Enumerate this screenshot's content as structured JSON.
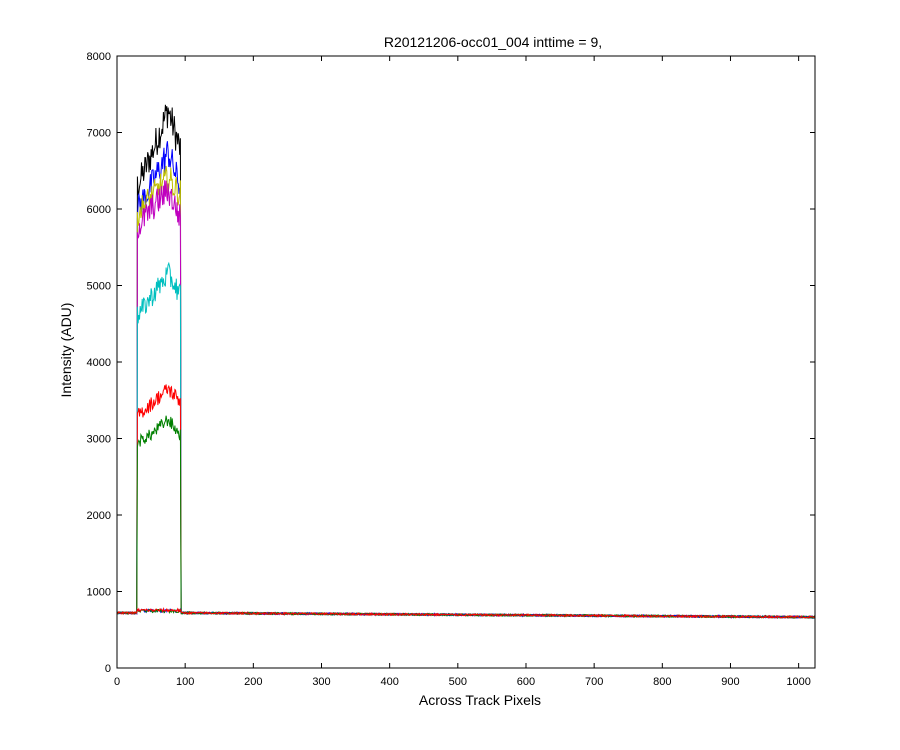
{
  "chart_data": {
    "type": "line",
    "title": "R20121206-occ01_004 inttime = 9,",
    "xlabel": "Across Track Pixels",
    "ylabel": "Intensity (ADU)",
    "xlim": [
      0,
      1024
    ],
    "ylim": [
      0,
      8000
    ],
    "xticks": [
      0,
      100,
      200,
      300,
      400,
      500,
      600,
      700,
      800,
      900,
      1000
    ],
    "yticks": [
      0,
      1000,
      2000,
      3000,
      4000,
      5000,
      6000,
      7000,
      8000
    ],
    "grid": false,
    "legend": "none",
    "baseline": {
      "x": [
        0,
        100,
        1024
      ],
      "y": [
        720,
        720,
        665
      ]
    },
    "signal_region": {
      "x_start": 30,
      "x_end": 93
    },
    "series": [
      {
        "color": "#000000",
        "level_x": [
          30,
          50,
          75,
          92
        ],
        "level_y": [
          6300,
          6700,
          7300,
          6800
        ]
      },
      {
        "color": "#0000ff",
        "level_x": [
          30,
          50,
          75,
          92
        ],
        "level_y": [
          6000,
          6300,
          6750,
          6300
        ]
      },
      {
        "color": "#bfbf00",
        "level_x": [
          30,
          50,
          75,
          92
        ],
        "level_y": [
          5950,
          6150,
          6400,
          6200
        ]
      },
      {
        "color": "#bf00bf",
        "level_x": [
          30,
          50,
          75,
          92
        ],
        "level_y": [
          5750,
          6000,
          6250,
          5900
        ]
      },
      {
        "color": "#00bfbf",
        "level_x": [
          30,
          50,
          75,
          92
        ],
        "level_y": [
          4600,
          4850,
          5150,
          4900
        ]
      },
      {
        "color": "#ff0000",
        "level_x": [
          30,
          50,
          75,
          92
        ],
        "level_y": [
          3300,
          3450,
          3650,
          3500
        ]
      },
      {
        "color": "#008000",
        "level_x": [
          30,
          50,
          75,
          92
        ],
        "level_y": [
          2950,
          3050,
          3250,
          3050
        ]
      },
      {
        "color": "#0000ff",
        "level_x": [
          30,
          92
        ],
        "level_y": [
          750,
          750
        ]
      },
      {
        "color": "#008000",
        "level_x": [
          30,
          92
        ],
        "level_y": [
          745,
          745
        ]
      },
      {
        "color": "#ff0000",
        "level_x": [
          30,
          92
        ],
        "level_y": [
          755,
          755
        ]
      }
    ]
  }
}
